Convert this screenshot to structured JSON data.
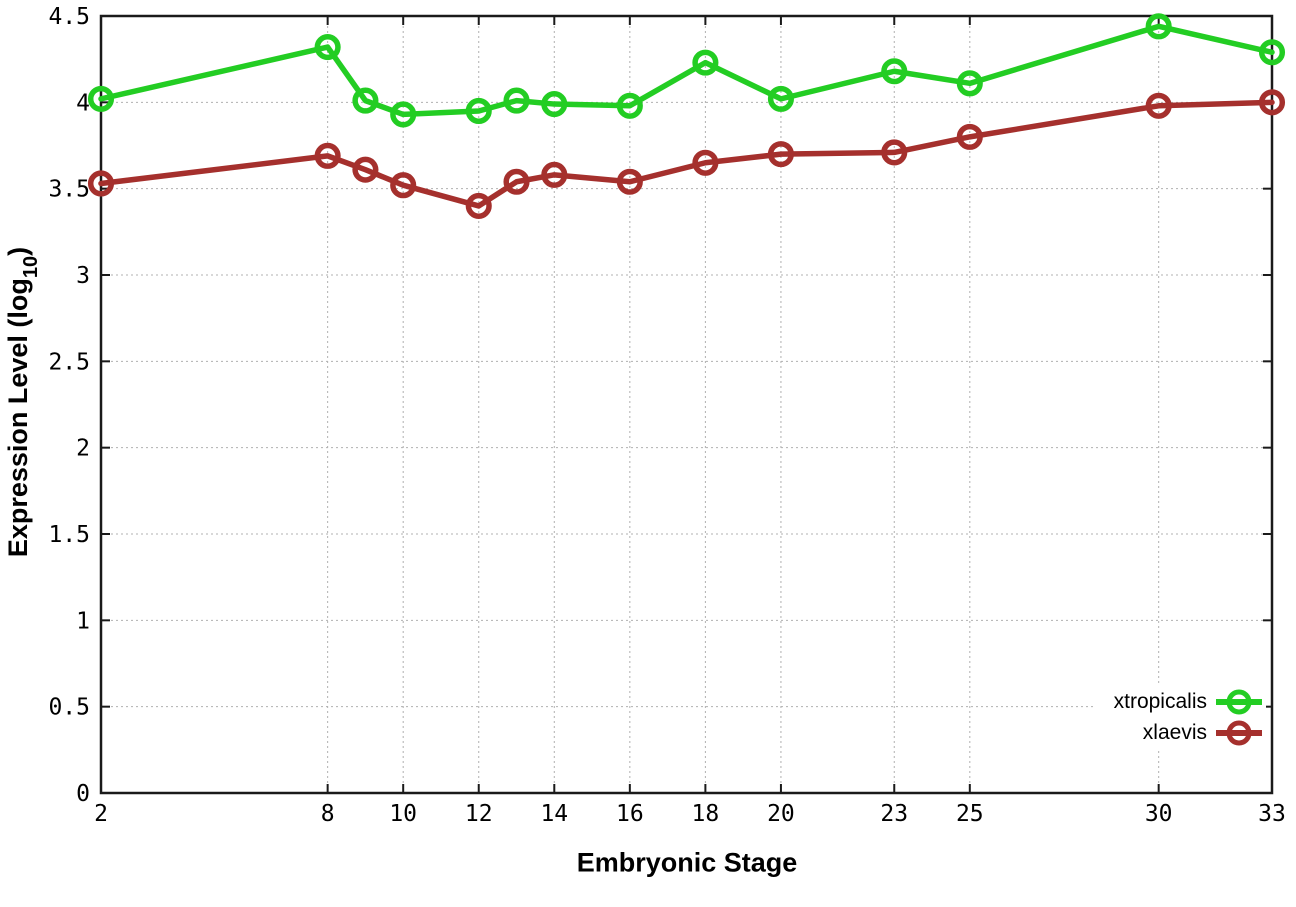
{
  "chart_data": {
    "type": "line",
    "title": "",
    "xlabel": "Embryonic Stage",
    "ylabel": "Expression Level (log10)",
    "ylabel_parts": {
      "prefix": "Expression Level (log",
      "sub": "10",
      "suffix": ")"
    },
    "x": [
      2,
      8,
      9,
      10,
      12,
      13,
      14,
      16,
      18,
      20,
      23,
      25,
      30,
      33
    ],
    "series": [
      {
        "name": "xtropicalis",
        "color": "#23cd23",
        "values": [
          4.02,
          4.32,
          4.01,
          3.93,
          3.95,
          4.01,
          3.99,
          3.98,
          4.23,
          4.02,
          4.18,
          4.11,
          4.44,
          4.29
        ]
      },
      {
        "name": "xlaevis",
        "color": "#a5302d",
        "values": [
          3.53,
          3.69,
          3.61,
          3.52,
          3.4,
          3.54,
          3.58,
          3.54,
          3.65,
          3.7,
          3.71,
          3.8,
          3.98,
          4.0
        ]
      }
    ],
    "xlim": [
      2,
      33
    ],
    "ylim": [
      0,
      4.5
    ],
    "x_ticks": [
      2,
      8,
      10,
      12,
      14,
      16,
      18,
      20,
      23,
      25,
      30,
      33
    ],
    "x_tick_labels": [
      "2",
      "8",
      "10",
      "12",
      "14",
      "16",
      "18",
      "20",
      "23",
      "25",
      "30",
      "33"
    ],
    "y_ticks": [
      0,
      0.5,
      1,
      1.5,
      2,
      2.5,
      3,
      3.5,
      4,
      4.5
    ],
    "y_tick_labels": [
      "0",
      "0.5",
      "1",
      "1.5",
      "2",
      "2.5",
      "3",
      "3.5",
      "4",
      "4.5"
    ],
    "grid": true,
    "tics_mirrored": true,
    "marker": "open-circle",
    "legend_position": "bottom-right"
  },
  "colors": {
    "background": "#ffffff",
    "axis": "#1a1a1a",
    "grid": "#b0b0b0",
    "tick_label": "#000000",
    "xtropicalis": "#23cd23",
    "xlaevis": "#a5302d"
  }
}
